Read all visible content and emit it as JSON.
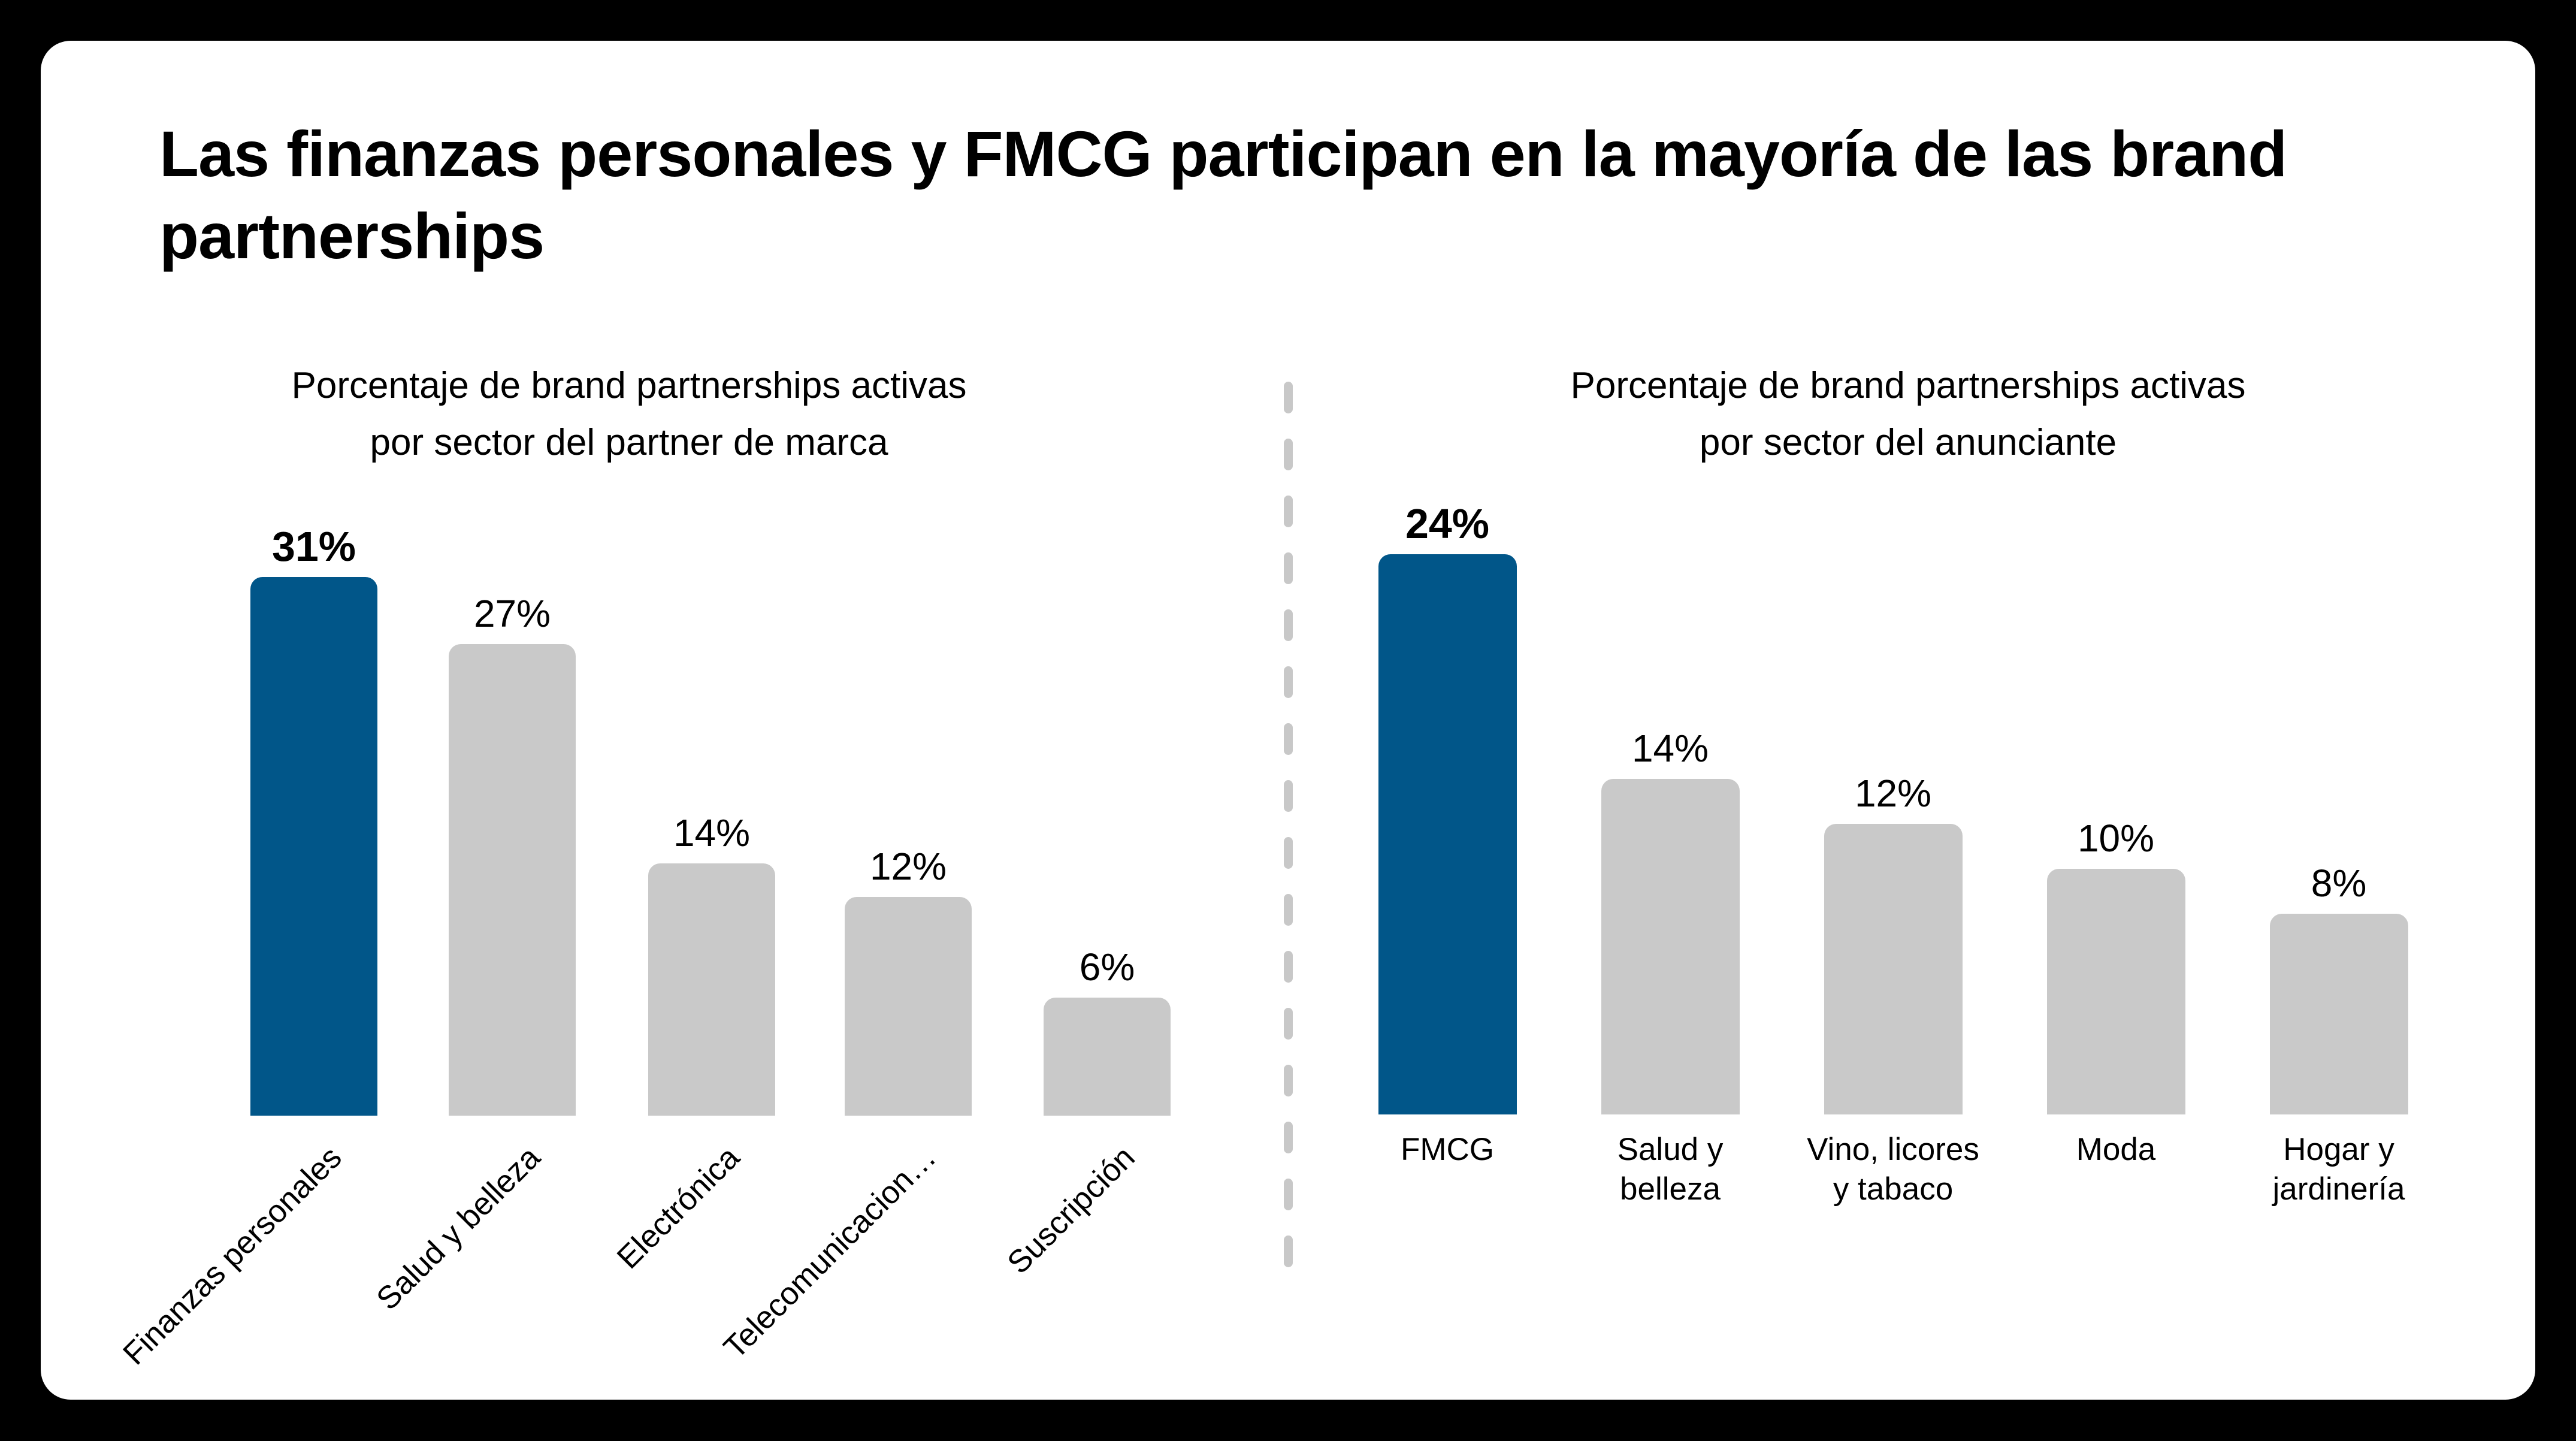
{
  "page": {
    "background_color": "#000000",
    "card_color": "#FFFFFF"
  },
  "title": {
    "text": "Las finanzas personales y FMCG participan en la mayoría de las brand partnerships"
  },
  "colors": {
    "highlight_blue": "#015689",
    "bar_gray": "#C9C9C9",
    "divider_gray": "#C8C8C8",
    "text": "#000000"
  },
  "divider": {
    "style": "vertical-dashed",
    "color": "#C8C8C8"
  },
  "chart_data": [
    {
      "type": "bar",
      "title": "Porcentaje de brand partnerships activas por sector del partner de marca",
      "title_lines": [
        "Porcentaje de brand partnerships activas",
        "por sector del partner de marca"
      ],
      "categories": [
        "Finanzas personales",
        "Salud y belleza",
        "Electrónica",
        "Telecomunicacion…",
        "Suscripción"
      ],
      "tick_labels": [
        "Finanzas personales",
        "Salud y belleza",
        "Electrónica",
        "Telecomunicacion…",
        "Suscripción"
      ],
      "values": [
        31,
        27,
        14,
        12,
        6
      ],
      "value_labels": [
        "31%",
        "27%",
        "14%",
        "12%",
        "6%"
      ],
      "unit": "%",
      "highlighted_index": 0,
      "tick_rotation_deg": 45,
      "grid": false,
      "legend": "none",
      "value_axis": "hidden"
    },
    {
      "type": "bar",
      "title": "Porcentaje de brand partnerships activas por sector del anunciante",
      "title_lines": [
        "Porcentaje de brand partnerships activas",
        "por sector del anunciante"
      ],
      "categories": [
        "FMCG",
        "Salud y belleza",
        "Vino, licores y tabaco",
        "Moda",
        "Hogar y jardinería"
      ],
      "tick_labels": [
        "FMCG",
        "Salud y\nbelleza",
        "Vino, licores\ny tabaco",
        "Moda",
        "Hogar y\njardinería"
      ],
      "values": [
        24,
        14,
        12,
        10,
        8
      ],
      "value_labels": [
        "24%",
        "14%",
        "12%",
        "10%",
        "8%"
      ],
      "unit": "%",
      "highlighted_index": 0,
      "tick_rotation_deg": 0,
      "grid": false,
      "legend": "none",
      "value_axis": "hidden"
    }
  ]
}
